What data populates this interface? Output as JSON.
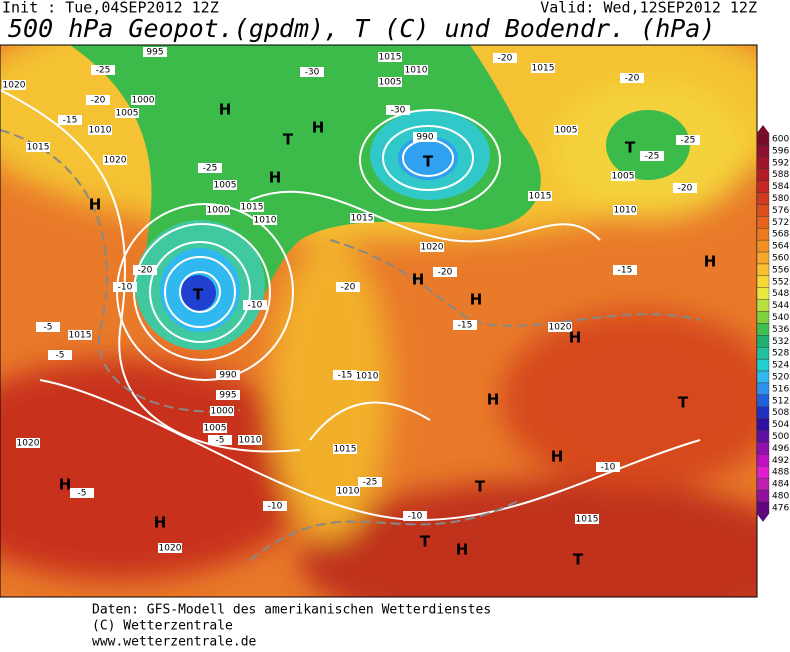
{
  "header": {
    "init": "Init : Tue,04SEP2012 12Z",
    "valid": "Valid: Wed,12SEP2012 12Z",
    "title": "500 hPa Geopot.(gpdm), T (C) und Bodendr. (hPa)"
  },
  "footer": [
    "Daten: GFS-Modell des amerikanischen Wetterdienstes",
    "(C) Wetterzentrale",
    "www.wetterzentrale.de"
  ],
  "colorbar": {
    "ticks": [
      600,
      596,
      592,
      588,
      584,
      580,
      576,
      572,
      568,
      564,
      560,
      556,
      552,
      548,
      544,
      540,
      536,
      532,
      528,
      524,
      520,
      516,
      512,
      508,
      504,
      500,
      496,
      492,
      488,
      484,
      480,
      476
    ],
    "colors": [
      "#7a0c2a",
      "#8c1030",
      "#a0142c",
      "#b41c28",
      "#c42824",
      "#d03a20",
      "#dc4e1e",
      "#e4641e",
      "#ec7a20",
      "#f29024",
      "#f6a82a",
      "#f8c030",
      "#f6d838",
      "#e8e840",
      "#b8e040",
      "#80d040",
      "#40c050",
      "#20b070",
      "#20c0a0",
      "#20d0d0",
      "#30b8f0",
      "#3090f0",
      "#2060e0",
      "#2030c0",
      "#3010a0",
      "#6010a0",
      "#9010b0",
      "#c010c0",
      "#e020d0",
      "#c020b0",
      "#9010a0",
      "#600880"
    ]
  },
  "map": {
    "pressure_centers": [
      "H",
      "H",
      "H",
      "T",
      "T",
      "T",
      "H",
      "T",
      "H",
      "H",
      "H",
      "H",
      "H",
      "T",
      "H",
      "T",
      "H",
      "H",
      "T",
      "H",
      "T"
    ],
    "isobar_labels": [
      "1020",
      "1015",
      "1020",
      "1005",
      "1000",
      "1015",
      "1010",
      "995",
      "1000",
      "1005",
      "1010",
      "1015",
      "990",
      "995",
      "1000",
      "1005",
      "1010",
      "1020",
      "1020",
      "1015",
      "1010",
      "1010",
      "1015",
      "1020",
      "990",
      "1005",
      "1015",
      "1010",
      "1015",
      "1005",
      "1005",
      "1010",
      "1020",
      "1015",
      "1015"
    ],
    "temperature_labels": [
      "-25",
      "-20",
      "-15",
      "-25",
      "-20",
      "-10",
      "-5",
      "-5",
      "-10",
      "-20",
      "-15",
      "-15",
      "-15",
      "-20",
      "-10",
      "-10",
      "-10",
      "-5",
      "-5",
      "-25",
      "-30",
      "-20",
      "-25",
      "-20",
      "-25",
      "-30",
      "-20"
    ]
  }
}
